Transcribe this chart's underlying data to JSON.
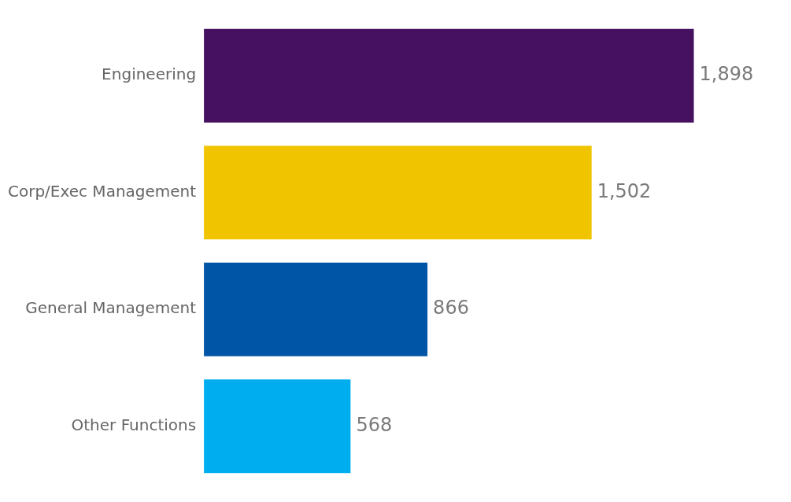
{
  "chart_data": {
    "type": "bar",
    "orientation": "horizontal",
    "categories": [
      "Engineering",
      "Corp/Exec Management",
      "General Management",
      "Other Functions"
    ],
    "values": [
      1898,
      1502,
      866,
      568
    ],
    "colors": [
      "#461160",
      "#f0c500",
      "#0055a6",
      "#00aeef"
    ],
    "value_labels": [
      "1,898",
      "1,502",
      "866",
      "568"
    ],
    "grid": false,
    "legend": false,
    "tick_labels": "y"
  }
}
